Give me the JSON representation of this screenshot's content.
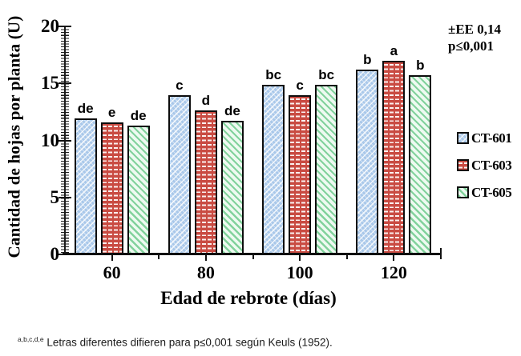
{
  "annotation": {
    "line1": "±EE 0,14",
    "line2": "p≤0,001"
  },
  "footnote": {
    "superscript": "a,b,c,d,e",
    "text": " Letras diferentes difieren para p≤0,001 según Keuls (1952)."
  },
  "colors": {
    "ct601_fill": "#a9c8ea",
    "ct603_fill": "#c94b42",
    "ct605_stripe": "#7cd098",
    "bar_border": "#0d0d0d"
  },
  "chart_data": {
    "type": "bar",
    "title": "",
    "xlabel": "Edad de rebrote (días)",
    "ylabel": "Cantidad de hojas por planta (U)",
    "categories": [
      "60",
      "80",
      "100",
      "120"
    ],
    "series": [
      {
        "name": "CT-601",
        "pattern": "pat-ct601",
        "values": [
          11.9,
          14.0,
          14.9,
          16.2
        ],
        "letters": [
          "de",
          "c",
          "bc",
          "b"
        ]
      },
      {
        "name": "CT-603",
        "pattern": "pat-ct603",
        "values": [
          11.6,
          12.6,
          14.0,
          17.0
        ],
        "letters": [
          "e",
          "d",
          "c",
          "a"
        ]
      },
      {
        "name": "CT-605",
        "pattern": "pat-ct605",
        "values": [
          11.3,
          11.7,
          14.9,
          15.7
        ],
        "letters": [
          "de",
          "de",
          "bc",
          "b"
        ]
      }
    ],
    "ylim": [
      0,
      20
    ],
    "yticks": [
      0,
      5,
      10,
      15,
      20
    ],
    "grid": false,
    "legend_position": "right"
  }
}
